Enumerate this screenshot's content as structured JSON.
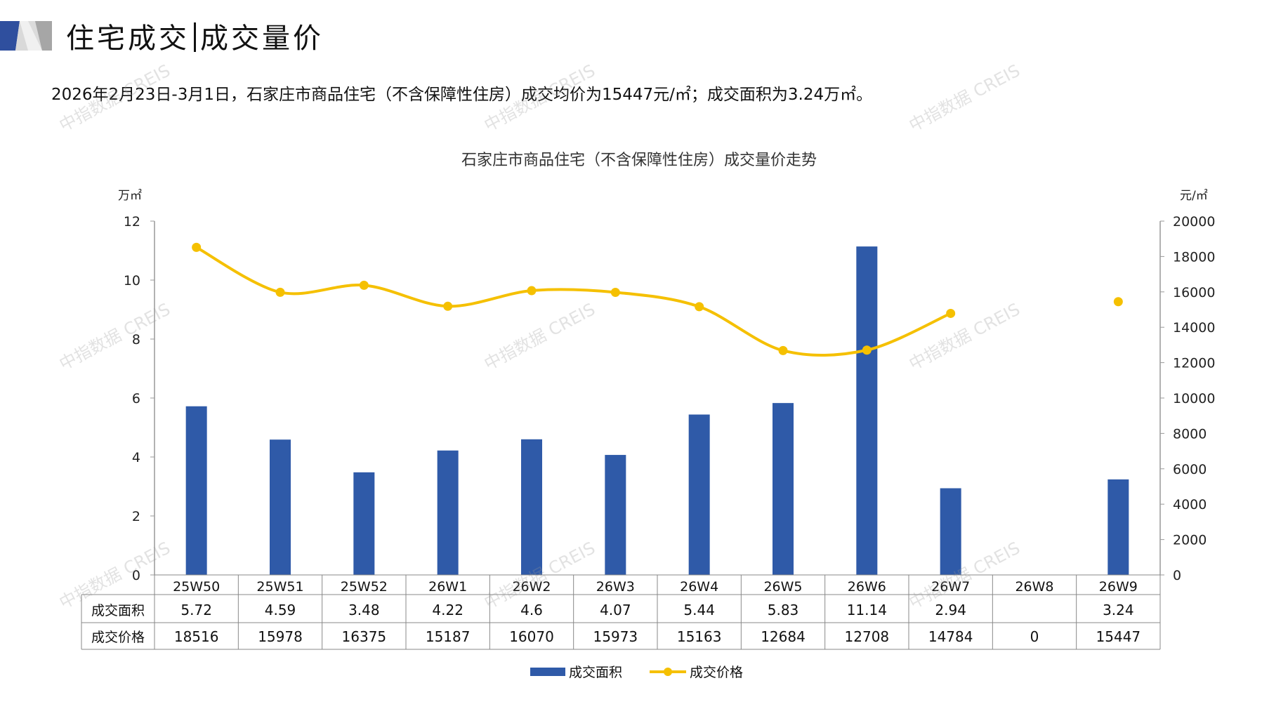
{
  "header": {
    "title_left": "住宅成交",
    "title_right": "成交量价",
    "subtitle": "2026年2月23日-3月1日，石家庄市商品住宅（不含保障性住房）成交均价为15447元/㎡；成交面积为3.24万㎡。"
  },
  "watermark": "中指数据 CREIS",
  "colors": {
    "bar": "#2f5aa8",
    "line": "#f5c000",
    "logo_blue": "#2f4f9e",
    "logo_gray": "#bfbfbf"
  },
  "chart_data": {
    "type": "bar+line",
    "title": "石家庄市商品住宅（不含保障性住房）成交量价走势",
    "ylabel_left": "万㎡",
    "ylabel_right": "元/㎡",
    "ylim_left": [
      0,
      12
    ],
    "ylim_right": [
      0,
      20000
    ],
    "yticks_left": [
      0,
      2,
      4,
      6,
      8,
      10,
      12
    ],
    "yticks_right": [
      0,
      2000,
      4000,
      6000,
      8000,
      10000,
      12000,
      14000,
      16000,
      18000,
      20000
    ],
    "categories": [
      "25W50",
      "25W51",
      "25W52",
      "26W1",
      "26W2",
      "26W3",
      "26W4",
      "26W5",
      "26W6",
      "26W7",
      "26W8",
      "26W9"
    ],
    "series": [
      {
        "name": "成交面积",
        "type": "bar",
        "axis": "left",
        "values": [
          5.72,
          4.59,
          3.48,
          4.22,
          4.6,
          4.07,
          5.44,
          5.83,
          11.14,
          2.94,
          null,
          3.24
        ],
        "labels": [
          "5.72",
          "4.59",
          "3.48",
          "4.22",
          "4.6",
          "4.07",
          "5.44",
          "5.83",
          "11.14",
          "2.94",
          "",
          "3.24"
        ]
      },
      {
        "name": "成交价格",
        "type": "line",
        "axis": "right",
        "values": [
          18516,
          15978,
          16375,
          15187,
          16070,
          15973,
          15163,
          12684,
          12708,
          14784,
          0,
          15447
        ],
        "labels": [
          "18516",
          "15978",
          "16375",
          "15187",
          "16070",
          "15973",
          "15163",
          "12684",
          "12708",
          "14784",
          "0",
          "15447"
        ]
      }
    ],
    "legend": "bottom"
  }
}
